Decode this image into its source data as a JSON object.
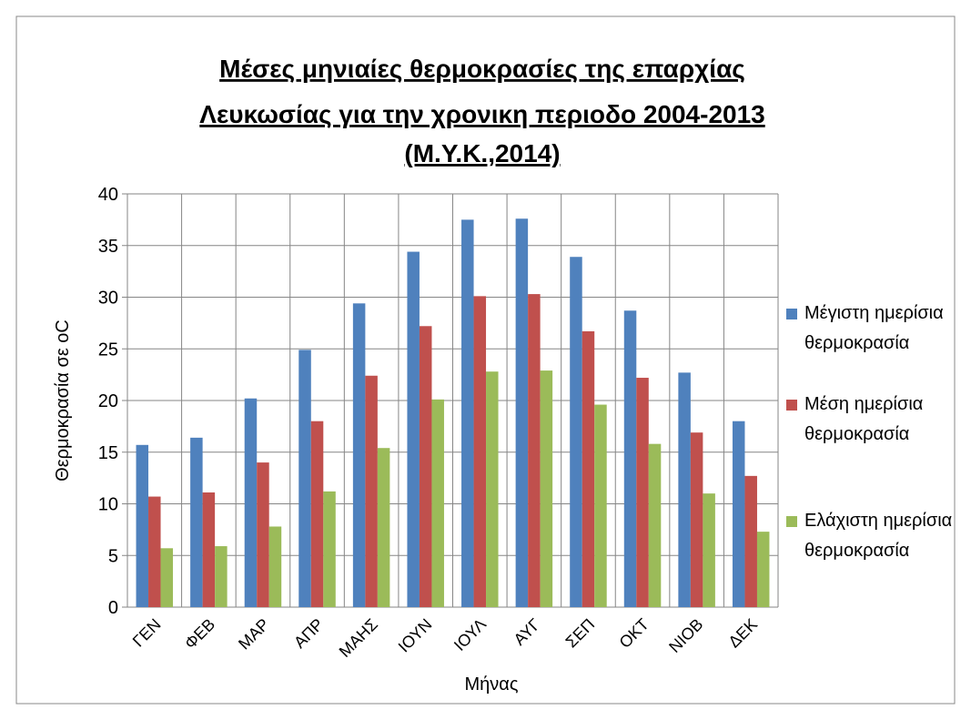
{
  "chart_data": {
    "type": "bar",
    "title": [
      "Μέσες μηνιαίες θερμοκρασίες της επαρχίας",
      "Λευκωσίας για την χρονικη περιοδο 2004-2013",
      "(Μ.Υ.Κ.,2014)"
    ],
    "x_label": "Μήνας",
    "y_label": "Θερμοκρασία σε oC",
    "categories": [
      "ΓΕΝ",
      "ΦΕΒ",
      "ΜΑΡ",
      "ΑΠΡ",
      "ΜΑΗΣ",
      "ΙΟΥΝ",
      "ΙΟΥΛ",
      "ΑΥΓ",
      "ΣΕΠ",
      "ΟΚΤ",
      "ΝΙΟΒ",
      "ΔΕΚ"
    ],
    "series": [
      {
        "name": "Μέγιστη ημερίσια θερμοκρασία",
        "color": "#4f81bd",
        "values": [
          15.7,
          16.4,
          20.2,
          24.9,
          29.4,
          34.4,
          37.5,
          37.6,
          33.9,
          28.7,
          22.7,
          18.0
        ]
      },
      {
        "name": "Μέση ημερίσια θερμοκρασία",
        "color": "#c0504d",
        "values": [
          10.7,
          11.1,
          14.0,
          18.0,
          22.4,
          27.2,
          30.1,
          30.3,
          26.7,
          22.2,
          16.9,
          12.7
        ]
      },
      {
        "name": "Ελάχιστη ημερίσια θερμοκρασία",
        "color": "#9bbb59",
        "values": [
          5.7,
          5.9,
          7.8,
          11.2,
          15.4,
          20.1,
          22.8,
          22.9,
          19.6,
          15.8,
          11.0,
          7.3
        ]
      }
    ],
    "ylim": [
      0,
      40
    ],
    "yticks": [
      0,
      5,
      10,
      15,
      20,
      25,
      30,
      35,
      40
    ],
    "grid": true,
    "legend": "right"
  }
}
